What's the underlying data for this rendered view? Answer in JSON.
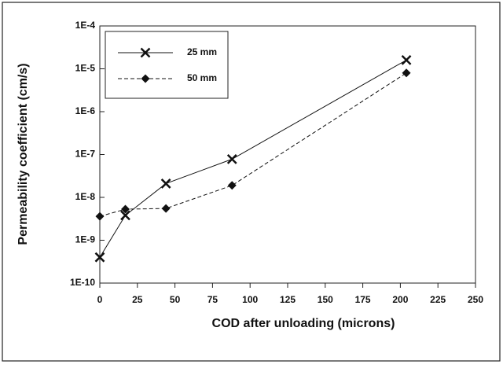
{
  "chart_data": {
    "type": "line",
    "xlabel": "COD after unloading (microns)",
    "ylabel": "Permeability coefficient (cm/s)",
    "log_y": true,
    "grid": false,
    "legend": "upper left",
    "xlim": [
      0,
      250
    ],
    "xticks": [
      0,
      25,
      50,
      75,
      100,
      125,
      150,
      175,
      200,
      225,
      250
    ],
    "ylim": [
      1e-10,
      0.0001
    ],
    "yticks": [
      {
        "value": 1e-10,
        "label": "1E-10"
      },
      {
        "value": 1e-09,
        "label": "1E-9"
      },
      {
        "value": 1e-08,
        "label": "1E-8"
      },
      {
        "value": 1e-07,
        "label": "1E-7"
      },
      {
        "value": 1e-06,
        "label": "1E-6"
      },
      {
        "value": 1e-05,
        "label": "1E-5"
      },
      {
        "value": 0.0001,
        "label": "1E-4"
      }
    ],
    "series": [
      {
        "name": "25 mm",
        "color": "#111111",
        "linestyle": "solid",
        "marker": "x",
        "x": [
          0,
          17,
          44,
          88,
          204
        ],
        "values": [
          4e-10,
          3.8e-09,
          2.1e-08,
          7.8e-08,
          1.6e-05
        ]
      },
      {
        "name": "50 mm",
        "color": "#111111",
        "linestyle": "dashed",
        "marker": "diamond",
        "x": [
          0,
          17,
          44,
          88,
          204
        ],
        "values": [
          3.6e-09,
          5.3e-09,
          5.5e-09,
          1.9e-08,
          8e-06
        ]
      }
    ]
  }
}
